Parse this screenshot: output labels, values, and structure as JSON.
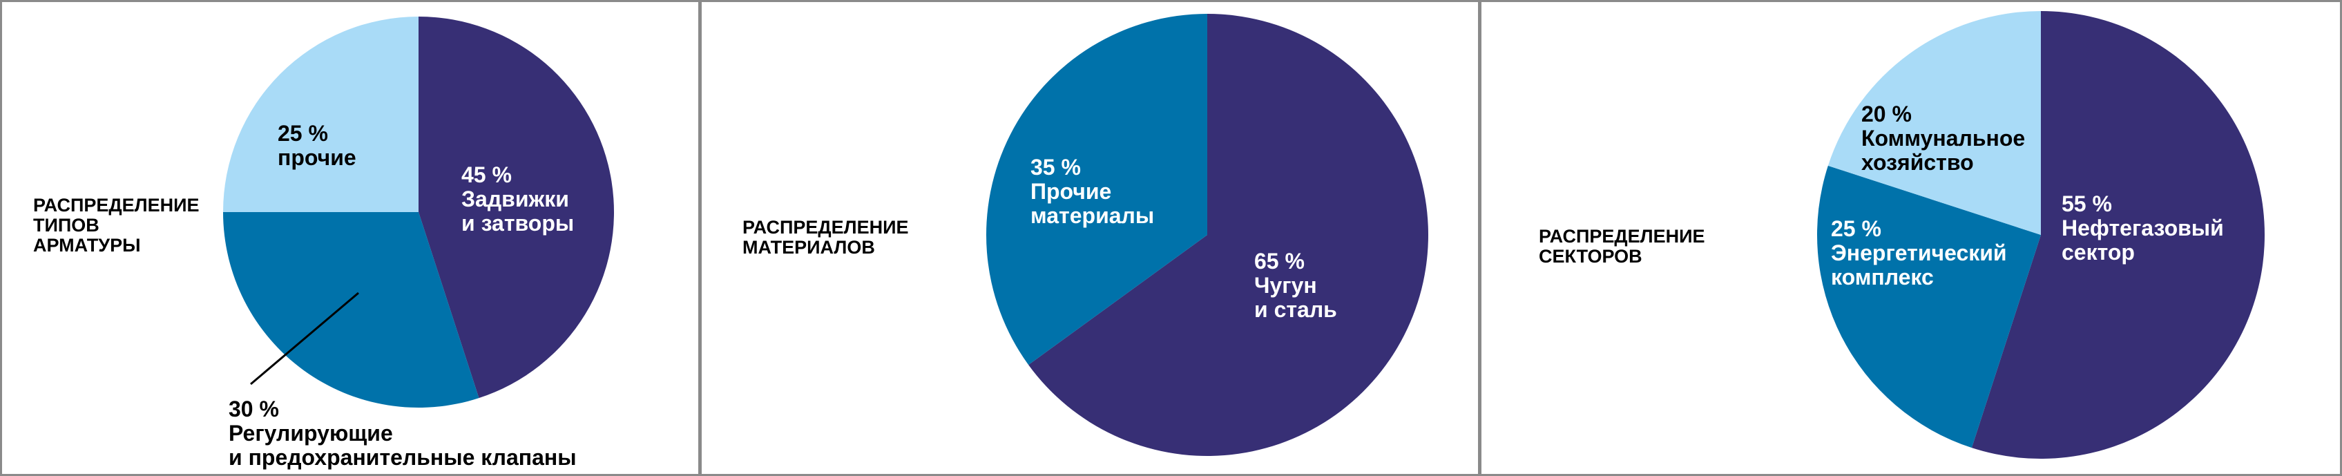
{
  "chart_data": [
    {
      "type": "pie",
      "title": "РАСПРЕДЕЛЕНИЕ\nТИПОВ\nАРМАТУРЫ",
      "categories": [
        "Задвижки\nи затворы",
        "Регулирующие\nи предохранительные клапаны",
        "прочие"
      ],
      "values": [
        45,
        30,
        25
      ],
      "value_labels": [
        "45 %",
        "30 %",
        "25 %"
      ],
      "colors": [
        "#372f75",
        "#0072aa",
        "#a9dbf7"
      ]
    },
    {
      "type": "pie",
      "title": "РАСПРЕДЕЛЕНИЕ\nМАТЕРИАЛОВ",
      "categories": [
        "Чугун\nи сталь",
        "Прочие\nматериалы"
      ],
      "values": [
        65,
        35
      ],
      "value_labels": [
        "65 %",
        "35 %"
      ],
      "colors": [
        "#372f75",
        "#0072aa"
      ]
    },
    {
      "type": "pie",
      "title": "РАСПРЕДЕЛЕНИЕ\nСЕКТОРОВ",
      "categories": [
        "Нефтегазовый\nсектор",
        "Энергетический\nкомплекс",
        "Коммунальное\nхозяйство"
      ],
      "values": [
        55,
        25,
        20
      ],
      "value_labels": [
        "55 %",
        "25 %",
        "20 %"
      ],
      "colors": [
        "#372f75",
        "#0072aa",
        "#a9dbf7"
      ]
    }
  ]
}
